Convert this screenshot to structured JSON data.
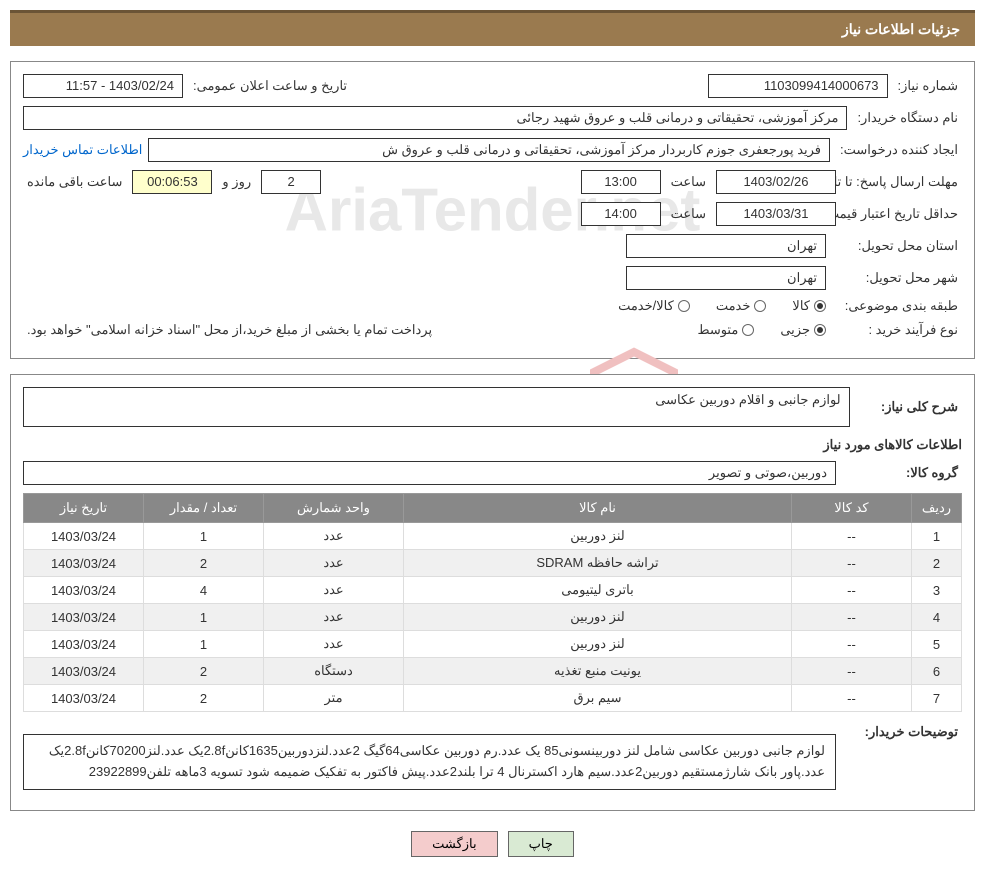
{
  "header": {
    "title": "جزئیات اطلاعات نیاز"
  },
  "fields": {
    "needNumberLabel": "شماره نیاز:",
    "needNumber": "1103099414000673",
    "announceDateLabel": "تاریخ و ساعت اعلان عمومی:",
    "announceDate": "1403/02/24 - 11:57",
    "buyerOrgLabel": "نام دستگاه خریدار:",
    "buyerOrg": "مرکز آموزشی، تحقیقاتی و درمانی قلب و عروق شهید رجائی",
    "requesterLabel": "ایجاد کننده درخواست:",
    "requester": "فرید پورجعفری جوزم کاربردار  مرکز آموزشی، تحقیقاتی و درمانی قلب و عروق ش",
    "contactLink": "اطلاعات تماس خریدار",
    "deadlineLabel": "مهلت ارسال پاسخ: تا تاریخ:",
    "deadlineDate": "1403/02/26",
    "timeLabel": "ساعت",
    "deadlineTime": "13:00",
    "daysAndLabel": "روز و",
    "remainDays": "2",
    "remainTime": "00:06:53",
    "remainLabel": "ساعت باقی مانده",
    "validityLabel": "حداقل تاریخ اعتبار قیمت: تا تاریخ:",
    "validityDate": "1403/03/31",
    "validityTime": "14:00",
    "provinceLabel": "استان محل تحویل:",
    "province": "تهران",
    "cityLabel": "شهر محل تحویل:",
    "city": "تهران",
    "categoryLabel": "طبقه بندی موضوعی:",
    "catGoods": "کالا",
    "catService": "خدمت",
    "catGoodsService": "کالا/خدمت",
    "processLabel": "نوع فرآیند خرید :",
    "procMinor": "جزیی",
    "procMedium": "متوسط",
    "paymentNote": "پرداخت تمام یا بخشی از مبلغ خرید،از محل \"اسناد خزانه اسلامی\" خواهد بود.",
    "generalDescLabel": "شرح کلی نیاز:",
    "generalDesc": "لوازم جانبی و اقلام دوربین عکاسی",
    "itemsTitle": "اطلاعات کالاهای مورد نیاز",
    "groupLabel": "گروه کالا:",
    "group": "دوربین،صوتی و تصویر",
    "buyerNotesLabel": "توضیحات خریدار:",
    "buyerNotes": "لوازم جانبی دوربین عکاسی شامل لنز دوربینسونی85 یک عدد.رم دوربین عکاسی64گیگ 2عدد.لنزدوربین1635کانن2.8fیک عدد.لنز70200کانن2.8fیک عدد.پاور بانک شارژمستقیم دوربین2عدد.سیم هارد اکسترنال 4 ترا بلند2عدد.پیش فاکتور به تفکیک ضمیمه شود تسویه 3ماهه تلفن23922899"
  },
  "table": {
    "headers": {
      "row": "ردیف",
      "code": "کد کالا",
      "name": "نام کالا",
      "unit": "واحد شمارش",
      "qty": "تعداد / مقدار",
      "date": "تاریخ نیاز"
    },
    "rows": [
      {
        "n": "1",
        "code": "--",
        "name": "لنز دوربین",
        "unit": "عدد",
        "qty": "1",
        "date": "1403/03/24"
      },
      {
        "n": "2",
        "code": "--",
        "name": "تراشه حافظه SDRAM",
        "unit": "عدد",
        "qty": "2",
        "date": "1403/03/24"
      },
      {
        "n": "3",
        "code": "--",
        "name": "باتری لیتیومی",
        "unit": "عدد",
        "qty": "4",
        "date": "1403/03/24"
      },
      {
        "n": "4",
        "code": "--",
        "name": "لنز دوربین",
        "unit": "عدد",
        "qty": "1",
        "date": "1403/03/24"
      },
      {
        "n": "5",
        "code": "--",
        "name": "لنز دوربین",
        "unit": "عدد",
        "qty": "1",
        "date": "1403/03/24"
      },
      {
        "n": "6",
        "code": "--",
        "name": "یونیت منبع تغذیه",
        "unit": "دستگاه",
        "qty": "2",
        "date": "1403/03/24"
      },
      {
        "n": "7",
        "code": "--",
        "name": "سیم برق",
        "unit": "متر",
        "qty": "2",
        "date": "1403/03/24"
      }
    ]
  },
  "buttons": {
    "print": "چاپ",
    "back": "بازگشت"
  },
  "watermark": "AriaTender.net"
}
